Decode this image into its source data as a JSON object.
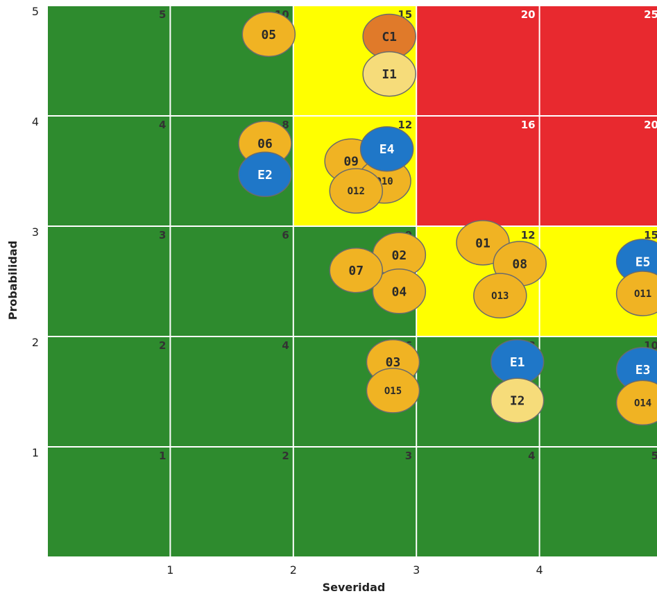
{
  "chart_data": {
    "type": "scatter",
    "xlabel": "Severidad",
    "ylabel": "Probabilidad",
    "x_ticks": [
      "1",
      "2",
      "3",
      "4",
      "5"
    ],
    "y_ticks": [
      "1",
      "2",
      "3",
      "4",
      "5"
    ],
    "xlim": [
      0,
      5
    ],
    "ylim": [
      0,
      5
    ],
    "grid": true,
    "zone_colors": {
      "green": "#2e8b2e",
      "yellow": "#ffff00",
      "red": "#e8292f"
    },
    "cells": [
      {
        "severity": 1,
        "probability": 1,
        "score": "1",
        "zone": "green"
      },
      {
        "severity": 2,
        "probability": 1,
        "score": "2",
        "zone": "green"
      },
      {
        "severity": 3,
        "probability": 1,
        "score": "3",
        "zone": "green"
      },
      {
        "severity": 4,
        "probability": 1,
        "score": "4",
        "zone": "green"
      },
      {
        "severity": 5,
        "probability": 1,
        "score": "5",
        "zone": "green"
      },
      {
        "severity": 1,
        "probability": 2,
        "score": "2",
        "zone": "green"
      },
      {
        "severity": 2,
        "probability": 2,
        "score": "4",
        "zone": "green"
      },
      {
        "severity": 3,
        "probability": 2,
        "score": "6",
        "zone": "green"
      },
      {
        "severity": 4,
        "probability": 2,
        "score": "8",
        "zone": "green"
      },
      {
        "severity": 5,
        "probability": 2,
        "score": "10",
        "zone": "green"
      },
      {
        "severity": 1,
        "probability": 3,
        "score": "3",
        "zone": "green"
      },
      {
        "severity": 2,
        "probability": 3,
        "score": "6",
        "zone": "green"
      },
      {
        "severity": 3,
        "probability": 3,
        "score": "9",
        "zone": "green"
      },
      {
        "severity": 4,
        "probability": 3,
        "score": "12",
        "zone": "yellow"
      },
      {
        "severity": 5,
        "probability": 3,
        "score": "15",
        "zone": "yellow"
      },
      {
        "severity": 1,
        "probability": 4,
        "score": "4",
        "zone": "green"
      },
      {
        "severity": 2,
        "probability": 4,
        "score": "8",
        "zone": "green"
      },
      {
        "severity": 3,
        "probability": 4,
        "score": "12",
        "zone": "yellow"
      },
      {
        "severity": 4,
        "probability": 4,
        "score": "16",
        "zone": "red"
      },
      {
        "severity": 5,
        "probability": 4,
        "score": "20",
        "zone": "red"
      },
      {
        "severity": 1,
        "probability": 5,
        "score": "5",
        "zone": "green"
      },
      {
        "severity": 2,
        "probability": 5,
        "score": "10",
        "zone": "green"
      },
      {
        "severity": 3,
        "probability": 5,
        "score": "15",
        "zone": "yellow"
      },
      {
        "severity": 4,
        "probability": 5,
        "score": "20",
        "zone": "red"
      },
      {
        "severity": 5,
        "probability": 5,
        "score": "25",
        "zone": "red"
      }
    ],
    "bubble_colors": {
      "gold": "#f0b323",
      "blue": "#1f77c8",
      "orange": "#e07a2a",
      "pale": "#f6dc7a"
    },
    "points": [
      {
        "label": "05",
        "x": 1.8,
        "y": 4.74,
        "color": "gold"
      },
      {
        "label": "C1",
        "x": 2.78,
        "y": 4.72,
        "color": "orange"
      },
      {
        "label": "I1",
        "x": 2.78,
        "y": 4.38,
        "color": "pale"
      },
      {
        "label": "06",
        "x": 1.77,
        "y": 3.75,
        "color": "gold"
      },
      {
        "label": "E2",
        "x": 1.77,
        "y": 3.47,
        "color": "blue"
      },
      {
        "label": "09",
        "x": 2.47,
        "y": 3.59,
        "color": "gold"
      },
      {
        "label": "O10",
        "x": 2.74,
        "y": 3.41,
        "color": "gold"
      },
      {
        "label": "O12",
        "x": 2.51,
        "y": 3.32,
        "color": "gold"
      },
      {
        "label": "E4",
        "x": 2.76,
        "y": 3.7,
        "color": "blue"
      },
      {
        "label": "01",
        "x": 3.54,
        "y": 2.85,
        "color": "gold"
      },
      {
        "label": "08",
        "x": 3.84,
        "y": 2.66,
        "color": "gold"
      },
      {
        "label": "O13",
        "x": 3.68,
        "y": 2.37,
        "color": "gold"
      },
      {
        "label": "02",
        "x": 2.86,
        "y": 2.74,
        "color": "gold"
      },
      {
        "label": "04",
        "x": 2.86,
        "y": 2.41,
        "color": "gold"
      },
      {
        "label": "07",
        "x": 2.51,
        "y": 2.6,
        "color": "gold"
      },
      {
        "label": "E5",
        "x": 4.84,
        "y": 2.68,
        "color": "blue"
      },
      {
        "label": "O11",
        "x": 4.84,
        "y": 2.39,
        "color": "gold"
      },
      {
        "label": "03",
        "x": 2.81,
        "y": 1.77,
        "color": "gold"
      },
      {
        "label": "O15",
        "x": 2.81,
        "y": 1.51,
        "color": "gold"
      },
      {
        "label": "E1",
        "x": 3.82,
        "y": 1.77,
        "color": "blue"
      },
      {
        "label": "I2",
        "x": 3.82,
        "y": 1.42,
        "color": "pale"
      },
      {
        "label": "E3",
        "x": 4.84,
        "y": 1.7,
        "color": "blue"
      },
      {
        "label": "O14",
        "x": 4.84,
        "y": 1.4,
        "color": "gold"
      }
    ]
  }
}
